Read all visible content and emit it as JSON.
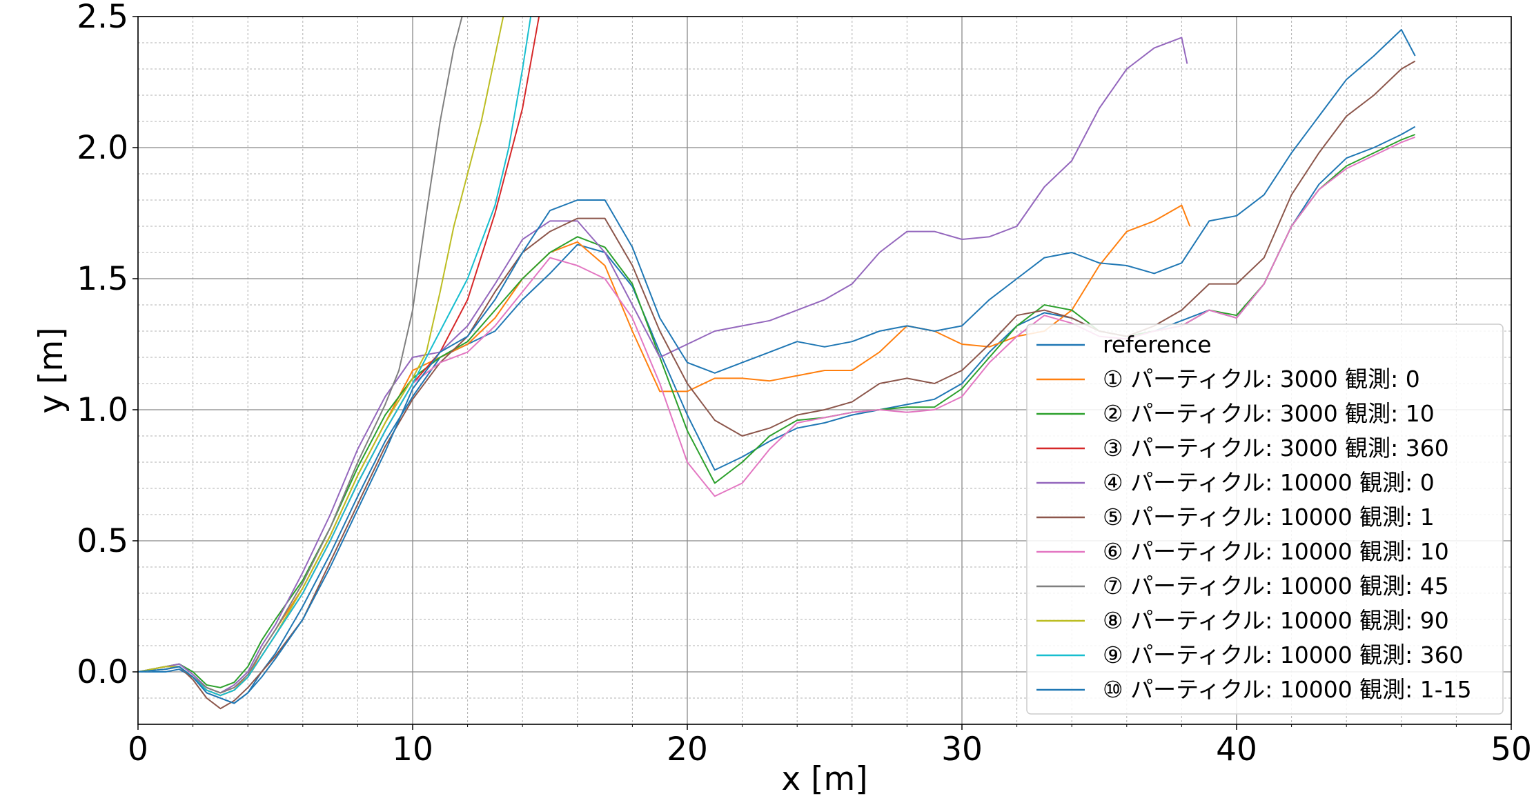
{
  "chart_data": {
    "type": "line",
    "xlabel": "x [m]",
    "ylabel": "y [m]",
    "xlim": [
      0,
      50
    ],
    "ylim": [
      -0.2,
      2.5
    ],
    "xticks": [
      0,
      10,
      20,
      30,
      40,
      50
    ],
    "yticks": [
      0.0,
      0.5,
      1.0,
      1.5,
      2.0,
      2.5
    ],
    "xtick_labels": [
      "0",
      "10",
      "20",
      "30",
      "40",
      "50"
    ],
    "ytick_labels": [
      "0.0",
      "0.5",
      "1.0",
      "1.5",
      "2.0",
      "2.5"
    ],
    "grid": "major and minor",
    "legend_position": "lower-right",
    "series": [
      {
        "name": "reference",
        "color": "#1f77b4",
        "x": [
          0,
          1,
          1.5,
          2,
          2.5,
          3,
          3.5,
          4,
          4.5,
          5,
          6,
          7,
          8,
          9,
          10,
          11,
          12,
          13,
          14,
          15,
          16,
          17,
          18,
          19,
          20,
          21,
          22,
          23,
          24,
          25,
          26,
          27,
          28,
          29,
          30,
          31,
          32,
          33,
          34,
          35,
          36,
          37,
          38,
          39,
          40,
          41,
          42,
          43,
          44,
          45,
          46,
          46.5
        ],
        "y": [
          0,
          0.0,
          0.01,
          -0.02,
          -0.08,
          -0.1,
          -0.12,
          -0.08,
          0.0,
          0.07,
          0.25,
          0.45,
          0.67,
          0.88,
          1.05,
          1.2,
          1.25,
          1.3,
          1.42,
          1.52,
          1.63,
          1.6,
          1.47,
          1.22,
          0.98,
          0.77,
          0.82,
          0.88,
          0.93,
          0.95,
          0.98,
          1.0,
          1.02,
          1.04,
          1.1,
          1.22,
          1.32,
          1.37,
          1.35,
          1.3,
          1.28,
          1.3,
          1.34,
          1.38,
          1.35,
          1.48,
          1.7,
          1.86,
          1.96,
          2.0,
          2.05,
          2.08
        ]
      },
      {
        "name": "① パーティクル: 3000 観測: 0",
        "color": "#ff7f0e",
        "x": [
          0,
          1,
          1.5,
          2,
          2.5,
          3,
          3.5,
          4,
          4.5,
          5,
          6,
          7,
          8,
          9,
          10,
          11,
          12,
          13,
          14,
          15,
          16,
          17,
          18,
          19,
          20,
          21,
          22,
          23,
          24,
          25,
          26,
          27,
          28,
          29,
          30,
          31,
          32,
          33,
          34,
          35,
          36,
          37,
          38,
          38.3
        ],
        "y": [
          0,
          0.02,
          0.02,
          -0.02,
          -0.06,
          -0.08,
          -0.06,
          -0.02,
          0.08,
          0.16,
          0.32,
          0.52,
          0.75,
          0.95,
          1.15,
          1.2,
          1.25,
          1.35,
          1.5,
          1.6,
          1.64,
          1.55,
          1.3,
          1.07,
          1.07,
          1.12,
          1.12,
          1.11,
          1.13,
          1.15,
          1.15,
          1.22,
          1.32,
          1.3,
          1.25,
          1.24,
          1.28,
          1.3,
          1.38,
          1.55,
          1.68,
          1.72,
          1.78,
          1.7
        ]
      },
      {
        "name": "② パーティクル: 3000 観測: 10",
        "color": "#2ca02c",
        "x": [
          0,
          1,
          1.5,
          2,
          2.5,
          3,
          3.5,
          4,
          4.5,
          5,
          6,
          7,
          8,
          9,
          10,
          11,
          12,
          13,
          14,
          15,
          16,
          17,
          18,
          19,
          20,
          21,
          22,
          23,
          24,
          25,
          26,
          27,
          28,
          29,
          30,
          31,
          32,
          33,
          34,
          35,
          36,
          37,
          38,
          39,
          40,
          41,
          42,
          43,
          44,
          45,
          46,
          46.5
        ],
        "y": [
          0,
          0.02,
          0.03,
          0.0,
          -0.05,
          -0.06,
          -0.04,
          0.02,
          0.12,
          0.2,
          0.35,
          0.55,
          0.78,
          0.98,
          1.12,
          1.2,
          1.26,
          1.38,
          1.5,
          1.6,
          1.66,
          1.62,
          1.48,
          1.2,
          0.92,
          0.72,
          0.8,
          0.9,
          0.96,
          0.97,
          0.99,
          1.0,
          1.01,
          1.01,
          1.08,
          1.2,
          1.32,
          1.4,
          1.38,
          1.3,
          1.28,
          1.3,
          1.32,
          1.38,
          1.36,
          1.48,
          1.7,
          1.84,
          1.93,
          1.98,
          2.03,
          2.05
        ]
      },
      {
        "name": "③ パーティクル: 3000 観測: 360",
        "color": "#d62728",
        "x": [
          0,
          1,
          1.5,
          2,
          2.5,
          3,
          3.5,
          4,
          4.5,
          5,
          6,
          7,
          8,
          9,
          10,
          11,
          12,
          13,
          14,
          14.6
        ],
        "y": [
          0,
          0.01,
          0.02,
          -0.02,
          -0.07,
          -0.09,
          -0.07,
          -0.02,
          0.06,
          0.14,
          0.3,
          0.5,
          0.72,
          0.92,
          1.1,
          1.22,
          1.42,
          1.75,
          2.15,
          2.5
        ]
      },
      {
        "name": "④ パーティクル: 10000 観測: 0",
        "color": "#9467bd",
        "x": [
          0,
          1,
          1.5,
          2,
          2.5,
          3,
          3.5,
          4,
          4.5,
          5,
          6,
          7,
          8,
          9,
          10,
          11,
          12,
          13,
          14,
          15,
          16,
          17,
          18,
          19,
          20,
          21,
          22,
          23,
          24,
          25,
          26,
          27,
          28,
          29,
          30,
          31,
          32,
          33,
          34,
          35,
          36,
          37,
          38,
          38.2
        ],
        "y": [
          0,
          0.02,
          0.03,
          -0.01,
          -0.06,
          -0.08,
          -0.05,
          0.0,
          0.1,
          0.18,
          0.38,
          0.6,
          0.85,
          1.05,
          1.2,
          1.22,
          1.32,
          1.48,
          1.65,
          1.72,
          1.72,
          1.6,
          1.4,
          1.2,
          1.25,
          1.3,
          1.32,
          1.34,
          1.38,
          1.42,
          1.48,
          1.6,
          1.68,
          1.68,
          1.65,
          1.66,
          1.7,
          1.85,
          1.95,
          2.15,
          2.3,
          2.38,
          2.42,
          2.32
        ]
      },
      {
        "name": "⑤ パーティクル: 10000 観測: 1",
        "color": "#8c564b",
        "x": [
          0,
          1,
          1.5,
          2,
          2.5,
          3,
          3.5,
          4,
          4.5,
          5,
          6,
          7,
          8,
          9,
          10,
          11,
          12,
          13,
          14,
          15,
          16,
          17,
          18,
          19,
          20,
          21,
          22,
          23,
          24,
          25,
          26,
          27,
          28,
          29,
          30,
          31,
          32,
          33,
          34,
          35,
          36,
          37,
          38,
          39,
          40,
          41,
          42,
          43,
          44,
          45,
          46,
          46.5
        ],
        "y": [
          0,
          0.01,
          0.02,
          -0.03,
          -0.1,
          -0.14,
          -0.11,
          -0.06,
          0.0,
          0.06,
          0.2,
          0.42,
          0.64,
          0.86,
          1.04,
          1.18,
          1.28,
          1.45,
          1.6,
          1.68,
          1.73,
          1.73,
          1.55,
          1.3,
          1.1,
          0.96,
          0.9,
          0.93,
          0.98,
          1.0,
          1.03,
          1.1,
          1.12,
          1.1,
          1.15,
          1.25,
          1.36,
          1.38,
          1.35,
          1.3,
          1.28,
          1.32,
          1.38,
          1.48,
          1.48,
          1.58,
          1.82,
          1.98,
          2.12,
          2.2,
          2.3,
          2.33
        ]
      },
      {
        "name": "⑥ パーティクル: 10000 観測: 10",
        "color": "#e377c2",
        "x": [
          0,
          1,
          1.5,
          2,
          2.5,
          3,
          3.5,
          4,
          4.5,
          5,
          6,
          7,
          8,
          9,
          10,
          11,
          12,
          13,
          14,
          15,
          16,
          17,
          18,
          19,
          20,
          21,
          22,
          23,
          24,
          25,
          26,
          27,
          28,
          29,
          30,
          31,
          32,
          33,
          34,
          35,
          36,
          37,
          38,
          39,
          40,
          41,
          42,
          43,
          44,
          45,
          46,
          46.5
        ],
        "y": [
          0,
          0.01,
          0.02,
          -0.02,
          -0.07,
          -0.09,
          -0.07,
          -0.02,
          0.06,
          0.14,
          0.3,
          0.5,
          0.72,
          0.92,
          1.1,
          1.18,
          1.22,
          1.32,
          1.45,
          1.58,
          1.55,
          1.5,
          1.35,
          1.1,
          0.8,
          0.67,
          0.72,
          0.85,
          0.95,
          0.97,
          0.99,
          1.0,
          0.99,
          1.0,
          1.05,
          1.18,
          1.28,
          1.36,
          1.33,
          1.28,
          1.27,
          1.3,
          1.32,
          1.38,
          1.35,
          1.48,
          1.7,
          1.84,
          1.92,
          1.97,
          2.02,
          2.04
        ]
      },
      {
        "name": "⑦ パーティクル: 10000 観測: 45",
        "color": "#7f7f7f",
        "x": [
          0,
          1,
          1.5,
          2,
          2.5,
          3,
          3.5,
          4,
          4.5,
          5,
          6,
          7,
          8,
          9,
          9.5,
          10,
          10.5,
          11,
          11.5,
          11.8
        ],
        "y": [
          0,
          0.02,
          0.02,
          -0.02,
          -0.06,
          -0.08,
          -0.06,
          -0.01,
          0.08,
          0.16,
          0.34,
          0.55,
          0.8,
          1.02,
          1.15,
          1.38,
          1.75,
          2.1,
          2.38,
          2.5
        ]
      },
      {
        "name": "⑧ パーティクル: 10000 観測: 90",
        "color": "#bcbd22",
        "x": [
          0,
          1,
          1.5,
          2,
          2.5,
          3,
          3.5,
          4,
          4.5,
          5,
          6,
          7,
          8,
          9,
          10,
          10.5,
          11,
          11.5,
          12,
          12.5,
          13,
          13.3
        ],
        "y": [
          0,
          0.02,
          0.02,
          -0.02,
          -0.07,
          -0.09,
          -0.07,
          -0.02,
          0.06,
          0.14,
          0.32,
          0.52,
          0.75,
          0.95,
          1.12,
          1.22,
          1.45,
          1.7,
          1.9,
          2.1,
          2.35,
          2.5
        ]
      },
      {
        "name": "⑨ パーティクル: 10000 観測: 360",
        "color": "#17becf",
        "x": [
          0,
          1,
          1.5,
          2,
          2.5,
          3,
          3.5,
          4,
          4.5,
          5,
          6,
          7,
          8,
          9,
          10,
          11,
          12,
          13,
          13.5,
          14,
          14.3
        ],
        "y": [
          0,
          0.01,
          0.02,
          -0.02,
          -0.07,
          -0.09,
          -0.07,
          -0.02,
          0.06,
          0.14,
          0.3,
          0.5,
          0.72,
          0.92,
          1.1,
          1.3,
          1.5,
          1.78,
          2.0,
          2.3,
          2.5
        ]
      },
      {
        "name": "⑩ パーティクル: 10000 観測: 1-15",
        "color": "#1f77b4",
        "x": [
          0,
          1,
          1.5,
          2,
          2.5,
          3,
          3.5,
          4,
          4.5,
          5,
          6,
          7,
          8,
          9,
          10,
          11,
          12,
          13,
          14,
          15,
          16,
          17,
          18,
          19,
          20,
          21,
          22,
          23,
          24,
          25,
          26,
          27,
          28,
          29,
          30,
          31,
          32,
          33,
          34,
          35,
          36,
          37,
          38,
          39,
          40,
          41,
          42,
          43,
          44,
          45,
          46,
          46.5
        ],
        "y": [
          0,
          0.01,
          0.02,
          -0.02,
          -0.08,
          -0.1,
          -0.12,
          -0.08,
          -0.02,
          0.05,
          0.2,
          0.4,
          0.62,
          0.84,
          1.08,
          1.22,
          1.28,
          1.42,
          1.6,
          1.76,
          1.8,
          1.8,
          1.62,
          1.35,
          1.18,
          1.14,
          1.18,
          1.22,
          1.26,
          1.24,
          1.26,
          1.3,
          1.32,
          1.3,
          1.32,
          1.42,
          1.5,
          1.58,
          1.6,
          1.56,
          1.55,
          1.52,
          1.56,
          1.72,
          1.74,
          1.82,
          1.98,
          2.12,
          2.26,
          2.35,
          2.45,
          2.35
        ]
      }
    ]
  }
}
